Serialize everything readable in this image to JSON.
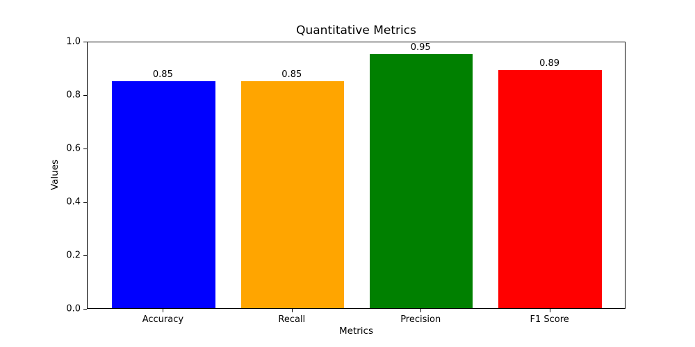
{
  "chart_data": {
    "type": "bar",
    "title": "Quantitative Metrics",
    "xlabel": "Metrics",
    "ylabel": "Values",
    "categories": [
      "Accuracy",
      "Recall",
      "Precision",
      "F1 Score"
    ],
    "values": [
      0.85,
      0.85,
      0.95,
      0.89
    ],
    "value_labels": [
      "0.85",
      "0.85",
      "0.95",
      "0.89"
    ],
    "bar_colors": [
      "#0000ff",
      "#ffa500",
      "#008000",
      "#ff0000"
    ],
    "ylim": [
      0.0,
      1.0
    ],
    "yticks": [
      "0.0",
      "0.2",
      "0.4",
      "0.6",
      "0.8",
      "1.0"
    ],
    "grid": false,
    "background_color": "#ffffff",
    "spine_color": "#000000"
  }
}
